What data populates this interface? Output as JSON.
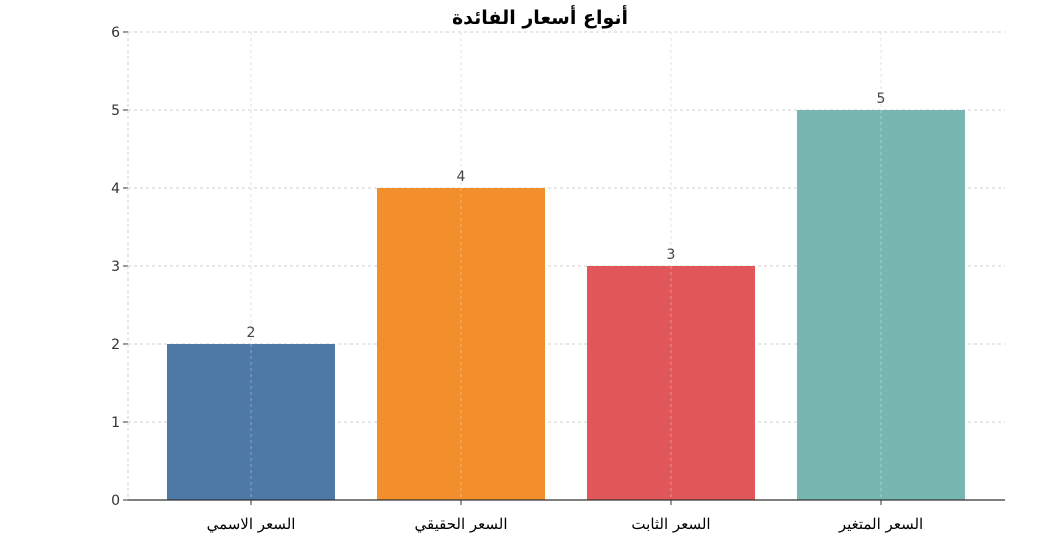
{
  "chart_data": {
    "type": "bar",
    "title": "أنواع أسعار الفائدة",
    "xlabel": "",
    "ylabel": "",
    "categories": [
      "السعر الاسمي",
      "السعر الحقيقي",
      "السعر الثابت",
      "السعر المتغير"
    ],
    "values": [
      2,
      4,
      3,
      5
    ],
    "data_labels": [
      "2",
      "4",
      "3",
      "5"
    ],
    "colors": [
      "#4e79a7",
      "#f28e2b",
      "#e15759",
      "#76b7b2"
    ],
    "ylim": [
      0,
      6
    ],
    "yticks": [
      "0",
      "1",
      "2",
      "3",
      "4",
      "5",
      "6"
    ],
    "grid": true,
    "legend": "none"
  }
}
